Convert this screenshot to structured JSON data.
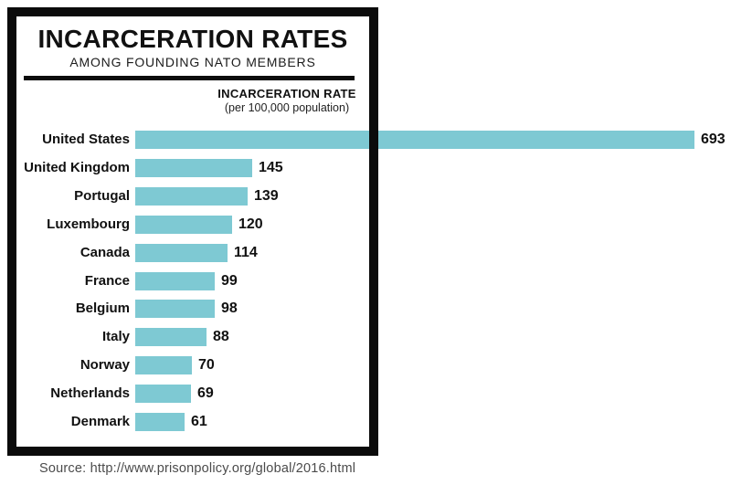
{
  "header": {
    "title": "INCARCERATION RATES",
    "subtitle": "AMONG FOUNDING NATO MEMBERS"
  },
  "axis": {
    "label": "INCARCERATION RATE",
    "sublabel": "(per 100,000 population)"
  },
  "source": {
    "text": "Source: http://www.prisonpolicy.org/global/2016.html"
  },
  "colors": {
    "bar": "#7EC9D3",
    "frame": "#0B0B0B",
    "text": "#111111",
    "source_text": "#4B4B4B"
  },
  "chart_data": {
    "type": "bar",
    "orientation": "horizontal",
    "title": "INCARCERATION RATES",
    "subtitle": "AMONG FOUNDING NATO MEMBERS",
    "xlabel": "INCARCERATION RATE (per 100,000 population)",
    "categories": [
      "United States",
      "United Kingdom",
      "Portugal",
      "Luxembourg",
      "Canada",
      "France",
      "Belgium",
      "Italy",
      "Norway",
      "Netherlands",
      "Denmark"
    ],
    "values": [
      693,
      145,
      139,
      120,
      114,
      99,
      98,
      88,
      70,
      69,
      61
    ],
    "xlim": [
      0,
      693
    ],
    "grid": false,
    "value_labels": true,
    "legend": false
  }
}
